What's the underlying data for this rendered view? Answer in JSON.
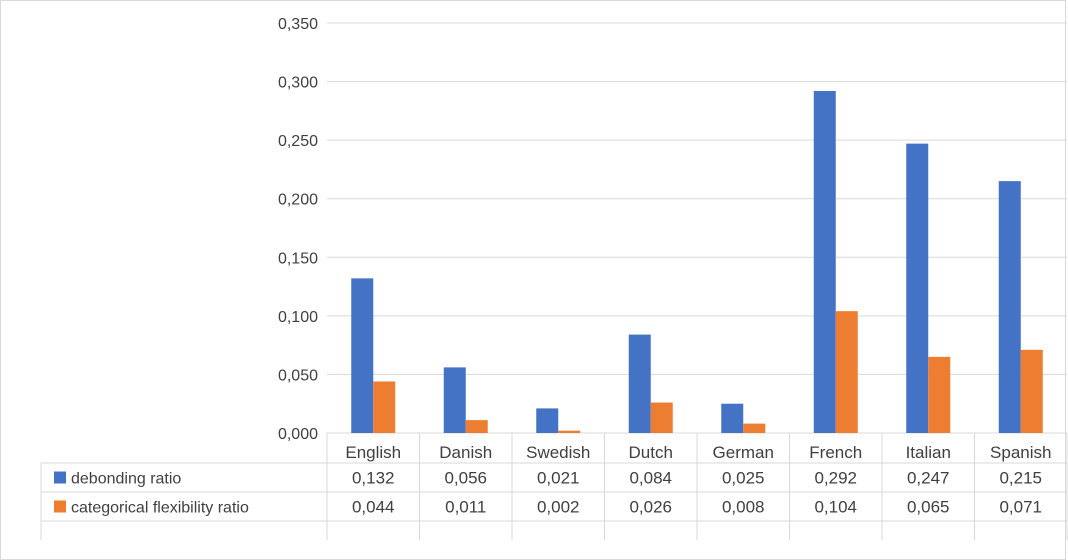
{
  "chart_data": {
    "type": "bar",
    "categories": [
      "English",
      "Danish",
      "Swedish",
      "Dutch",
      "German",
      "French",
      "Italian",
      "Spanish"
    ],
    "series": [
      {
        "name": "debonding ratio",
        "values": [
          0.132,
          0.056,
          0.021,
          0.084,
          0.025,
          0.292,
          0.247,
          0.215
        ],
        "labels": [
          "0,132",
          "0,056",
          "0,021",
          "0,084",
          "0,025",
          "0,292",
          "0,247",
          "0,215"
        ],
        "color": "#4472C4"
      },
      {
        "name": "categorical flexibility ratio",
        "values": [
          0.044,
          0.011,
          0.002,
          0.026,
          0.008,
          0.104,
          0.065,
          0.071
        ],
        "labels": [
          "0,044",
          "0,011",
          "0,002",
          "0,026",
          "0,008",
          "0,104",
          "0,065",
          "0,071"
        ],
        "color": "#ED7D31"
      }
    ],
    "ylim": [
      0,
      0.35
    ],
    "yticks": [
      0,
      0.05,
      0.1,
      0.15,
      0.2,
      0.25,
      0.3,
      0.35
    ],
    "ytick_labels": [
      "0,000",
      "0,050",
      "0,100",
      "0,150",
      "0,200",
      "0,250",
      "0,300",
      "0,350"
    ],
    "title": "",
    "xlabel": "",
    "ylabel": "",
    "grid": true,
    "legend": "data-table",
    "gridline_color": "#d9d9d9",
    "text_color": "#404040"
  }
}
